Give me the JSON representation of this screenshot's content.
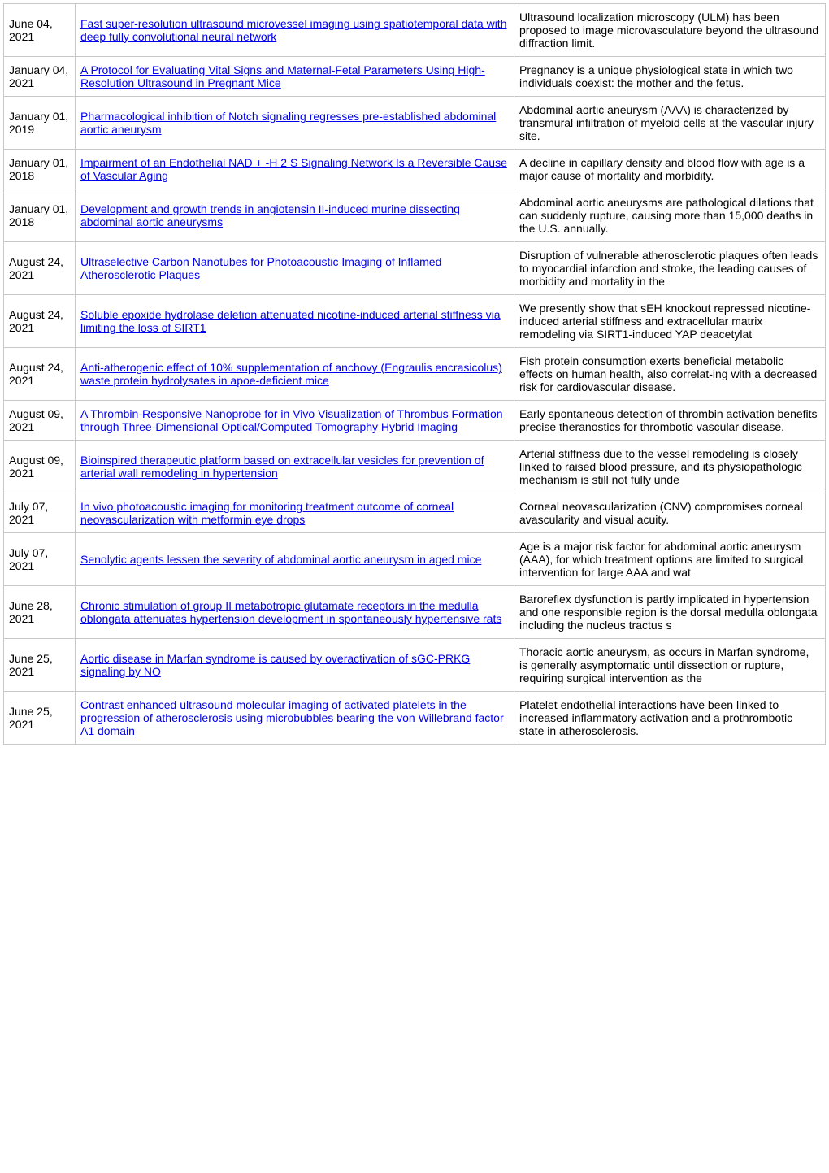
{
  "columns": {
    "date_width": 88,
    "title_width": 540
  },
  "link_color": "#0000ee",
  "rows": [
    {
      "date": "June 04, 2021",
      "title": "Fast super-resolution ultrasound microvessel imaging using spatiotemporal data with deep fully convolutional neural network",
      "desc": "Ultrasound localization microscopy (ULM) has been proposed to image microvasculature beyond the ultrasound diffraction limit."
    },
    {
      "date": "January 04, 2021",
      "title": "A Protocol for Evaluating Vital Signs and Maternal-Fetal Parameters Using High-Resolution Ultrasound in Pregnant Mice",
      "desc": "Pregnancy is a unique physiological state in which two individuals coexist: the mother and the fetus."
    },
    {
      "date": "January 01, 2019",
      "title": "Pharmacological inhibition of Notch signaling regresses pre-established abdominal aortic aneurysm",
      "desc": "Abdominal aortic aneurysm (AAA) is characterized by transmural infiltration of myeloid cells at the vascular injury site."
    },
    {
      "date": "January 01, 2018",
      "title": "Impairment of an Endothelial NAD + -H 2 S Signaling Network Is a Reversible Cause of Vascular Aging",
      "desc": "A decline in capillary density and blood flow with age is a major cause of mortality and morbidity."
    },
    {
      "date": "January 01, 2018",
      "title": "Development and growth trends in angiotensin II-induced murine dissecting abdominal aortic aneurysms",
      "desc": "Abdominal aortic aneurysms are pathological dilations that can suddenly rupture, causing more than 15,000 deaths in the U.S. annually."
    },
    {
      "date": "August 24, 2021",
      "title": "Ultraselective Carbon Nanotubes for Photoacoustic Imaging of Inflamed Atherosclerotic Plaques",
      "desc": "Disruption of vulnerable atherosclerotic plaques often leads to myocardial infarction and stroke, the leading causes of morbidity and mortality in the"
    },
    {
      "date": "August 24, 2021",
      "title": "Soluble epoxide hydrolase deletion attenuated nicotine-induced arterial stiffness via limiting the loss of SIRT1",
      "desc": "We presently show that sEH knockout repressed nicotine-induced arterial stiffness and extracellular matrix remodeling via SIRT1-induced YAP deacetylat"
    },
    {
      "date": "August 24, 2021",
      "title": "Anti-atherogenic effect of 10% supplementation of anchovy (Engraulis encrasicolus) waste protein hydrolysates in apoe-deficient mice",
      "desc": "Fish protein consumption exerts beneficial metabolic effects on human health, also correlat-ing with a decreased risk for cardiovascular disease."
    },
    {
      "date": "August 09, 2021",
      "title": "A Thrombin-Responsive Nanoprobe for in Vivo Visualization of Thrombus Formation through Three-Dimensional Optical/Computed Tomography Hybrid Imaging",
      "desc": "Early spontaneous detection of thrombin activation benefits precise theranostics for thrombotic vascular disease."
    },
    {
      "date": "August 09, 2021",
      "title": "Bioinspired therapeutic platform based on extracellular vesicles for prevention of arterial wall remodeling in hypertension",
      "desc": "Arterial stiffness due to the vessel remodeling is closely linked to raised blood pressure, and its physiopathologic mechanism is still not fully unde"
    },
    {
      "date": "July 07, 2021",
      "title": "In vivo photoacoustic imaging for monitoring treatment outcome of corneal neovascularization with metformin eye drops",
      "desc": "Corneal neovascularization (CNV) compromises corneal avascularity and visual acuity."
    },
    {
      "date": "July 07, 2021",
      "title": "Senolytic agents lessen the severity of abdominal aortic aneurysm in aged mice",
      "desc": "Age is a major risk factor for abdominal aortic aneurysm (AAA), for which treatment options are limited to surgical intervention for large AAA and wat"
    },
    {
      "date": "June 28, 2021",
      "title": "Chronic stimulation of group II metabotropic glutamate receptors in the medulla oblongata attenuates hypertension development in spontaneously hypertensive rats",
      "desc": "Baroreflex dysfunction is partly implicated in hypertension and one responsible region is the dorsal medulla oblongata including the nucleus tractus s"
    },
    {
      "date": "June 25, 2021",
      "title": "Aortic disease in Marfan syndrome is caused by overactivation of sGC-PRKG signaling by NO",
      "desc": "Thoracic aortic aneurysm, as occurs in Marfan syndrome, is generally asymptomatic until dissection or rupture, requiring surgical intervention as the"
    },
    {
      "date": "June 25, 2021",
      "title": "Contrast enhanced ultrasound molecular imaging of activated platelets in the progression of atherosclerosis using microbubbles bearing the von Willebrand factor A1 domain",
      "desc": "Platelet endothelial interactions have been linked to increased inflammatory activation and a prothrombotic state in atherosclerosis."
    }
  ]
}
